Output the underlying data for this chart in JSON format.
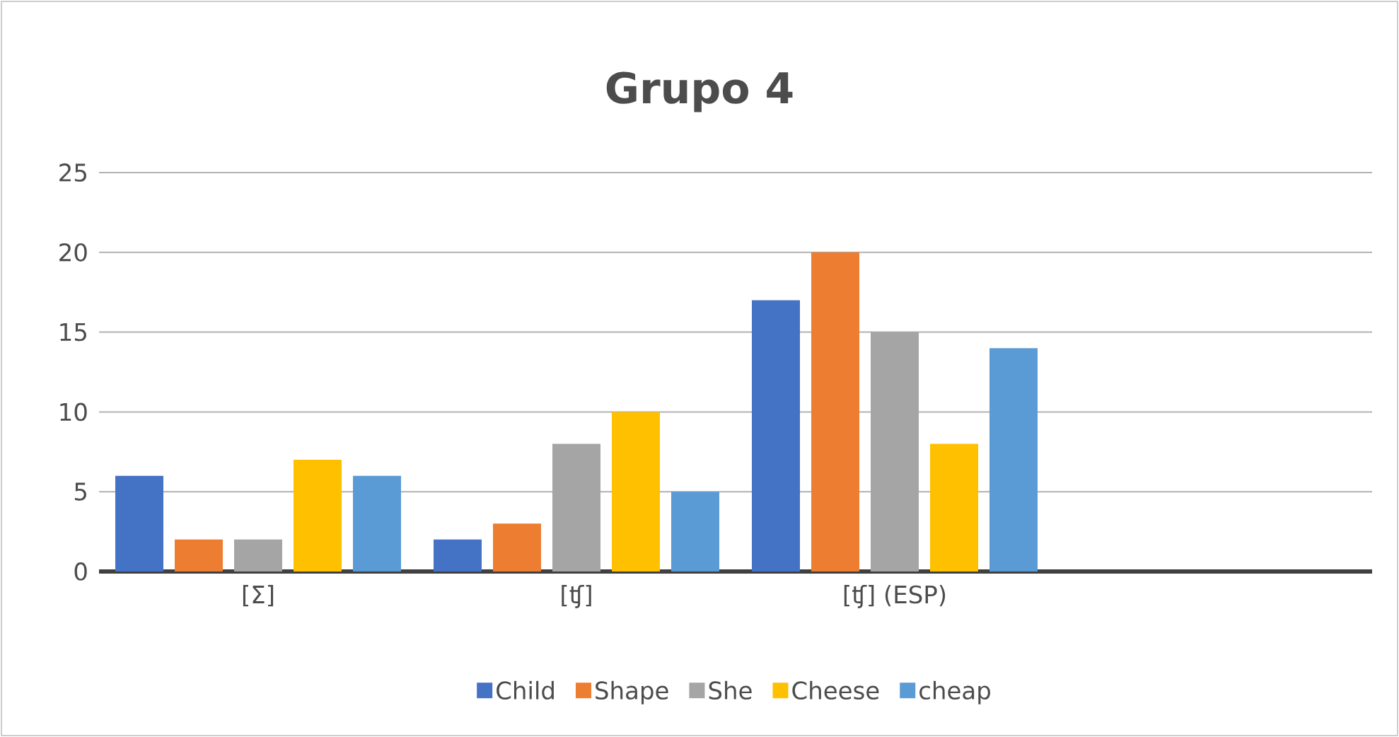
{
  "chart_data": {
    "type": "bar",
    "title": "Grupo 4",
    "categories": [
      "[Σ]",
      "[ʧ]",
      "[ʧ]  (ESP)",
      null
    ],
    "series": [
      {
        "name": "Child",
        "color": "#4472c4",
        "values": [
          6,
          2,
          17,
          null
        ]
      },
      {
        "name": "Shape",
        "color": "#ed7d31",
        "values": [
          2,
          3,
          20,
          null
        ]
      },
      {
        "name": "She",
        "color": "#a5a5a5",
        "values": [
          2,
          8,
          15,
          null
        ]
      },
      {
        "name": "Cheese",
        "color": "#ffc000",
        "values": [
          7,
          10,
          8,
          null
        ]
      },
      {
        "name": "cheap",
        "color": "#5b9bd5",
        "values": [
          6,
          5,
          14,
          null
        ]
      }
    ],
    "ylim": [
      0,
      25
    ],
    "yticks": [
      0,
      5,
      10,
      15,
      20,
      25
    ],
    "grid": "y",
    "legend": "bottom"
  }
}
